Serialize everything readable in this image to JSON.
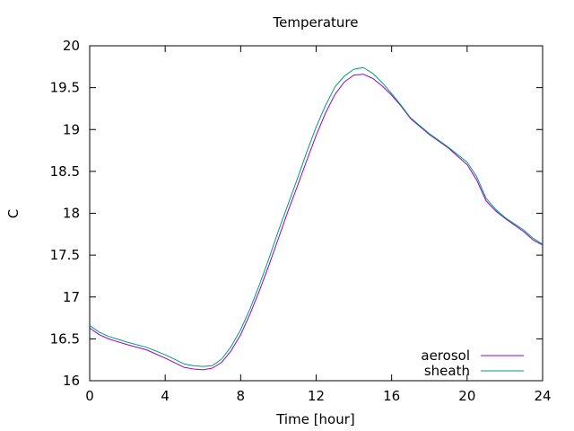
{
  "chart_data": {
    "type": "line",
    "title": "Temperature",
    "xlabel": "Time [hour]",
    "ylabel": "C",
    "xlim": [
      0,
      24
    ],
    "ylim": [
      16,
      20
    ],
    "xticks": [
      0,
      4,
      8,
      12,
      16,
      20,
      24
    ],
    "yticks": [
      16,
      16.5,
      17,
      17.5,
      18,
      18.5,
      19,
      19.5,
      20
    ],
    "ytick_labels": [
      "16",
      "16.5",
      "17",
      "17.5",
      "18",
      "18.5",
      "19",
      "19.5",
      "20"
    ],
    "grid": false,
    "legend_position": "bottom-right",
    "series": [
      {
        "name": "aerosol",
        "color": "#9400d3",
        "points": [
          [
            0,
            16.63
          ],
          [
            0.5,
            16.55
          ],
          [
            1,
            16.5
          ],
          [
            2,
            16.43
          ],
          [
            3,
            16.37
          ],
          [
            4,
            16.27
          ],
          [
            5,
            16.16
          ],
          [
            5.5,
            16.14
          ],
          [
            6,
            16.13
          ],
          [
            6.5,
            16.15
          ],
          [
            7,
            16.22
          ],
          [
            7.5,
            16.36
          ],
          [
            8,
            16.55
          ],
          [
            8.5,
            16.8
          ],
          [
            9,
            17.08
          ],
          [
            9.5,
            17.38
          ],
          [
            10,
            17.7
          ],
          [
            10.5,
            18.02
          ],
          [
            11,
            18.32
          ],
          [
            11.5,
            18.63
          ],
          [
            12,
            18.93
          ],
          [
            12.5,
            19.2
          ],
          [
            13,
            19.42
          ],
          [
            13.5,
            19.57
          ],
          [
            14,
            19.65
          ],
          [
            14.5,
            19.66
          ],
          [
            15,
            19.61
          ],
          [
            15.5,
            19.52
          ],
          [
            16,
            19.41
          ],
          [
            16.5,
            19.28
          ],
          [
            17,
            19.13
          ],
          [
            18,
            18.94
          ],
          [
            19,
            18.78
          ],
          [
            20,
            18.58
          ],
          [
            20.5,
            18.4
          ],
          [
            21,
            18.15
          ],
          [
            21.5,
            18.03
          ],
          [
            22,
            17.94
          ],
          [
            23,
            17.78
          ],
          [
            23.5,
            17.68
          ],
          [
            24,
            17.62
          ]
        ]
      },
      {
        "name": "sheath",
        "color": "#009e73",
        "points": [
          [
            0,
            16.66
          ],
          [
            0.5,
            16.58
          ],
          [
            1,
            16.53
          ],
          [
            2,
            16.46
          ],
          [
            3,
            16.4
          ],
          [
            4,
            16.31
          ],
          [
            5,
            16.2
          ],
          [
            5.5,
            16.18
          ],
          [
            6,
            16.17
          ],
          [
            6.5,
            16.18
          ],
          [
            7,
            16.26
          ],
          [
            7.5,
            16.41
          ],
          [
            8,
            16.61
          ],
          [
            8.5,
            16.86
          ],
          [
            9,
            17.15
          ],
          [
            9.5,
            17.46
          ],
          [
            10,
            17.79
          ],
          [
            10.5,
            18.1
          ],
          [
            11,
            18.41
          ],
          [
            11.5,
            18.73
          ],
          [
            12,
            19.03
          ],
          [
            12.5,
            19.29
          ],
          [
            13,
            19.51
          ],
          [
            13.5,
            19.64
          ],
          [
            14,
            19.72
          ],
          [
            14.5,
            19.74
          ],
          [
            15,
            19.67
          ],
          [
            15.5,
            19.56
          ],
          [
            16,
            19.43
          ],
          [
            16.5,
            19.29
          ],
          [
            17,
            19.14
          ],
          [
            18,
            18.95
          ],
          [
            19,
            18.79
          ],
          [
            20,
            18.61
          ],
          [
            20.5,
            18.44
          ],
          [
            21,
            18.18
          ],
          [
            21.5,
            18.05
          ],
          [
            22,
            17.95
          ],
          [
            23,
            17.8
          ],
          [
            23.5,
            17.7
          ],
          [
            24,
            17.63
          ]
        ]
      }
    ]
  }
}
